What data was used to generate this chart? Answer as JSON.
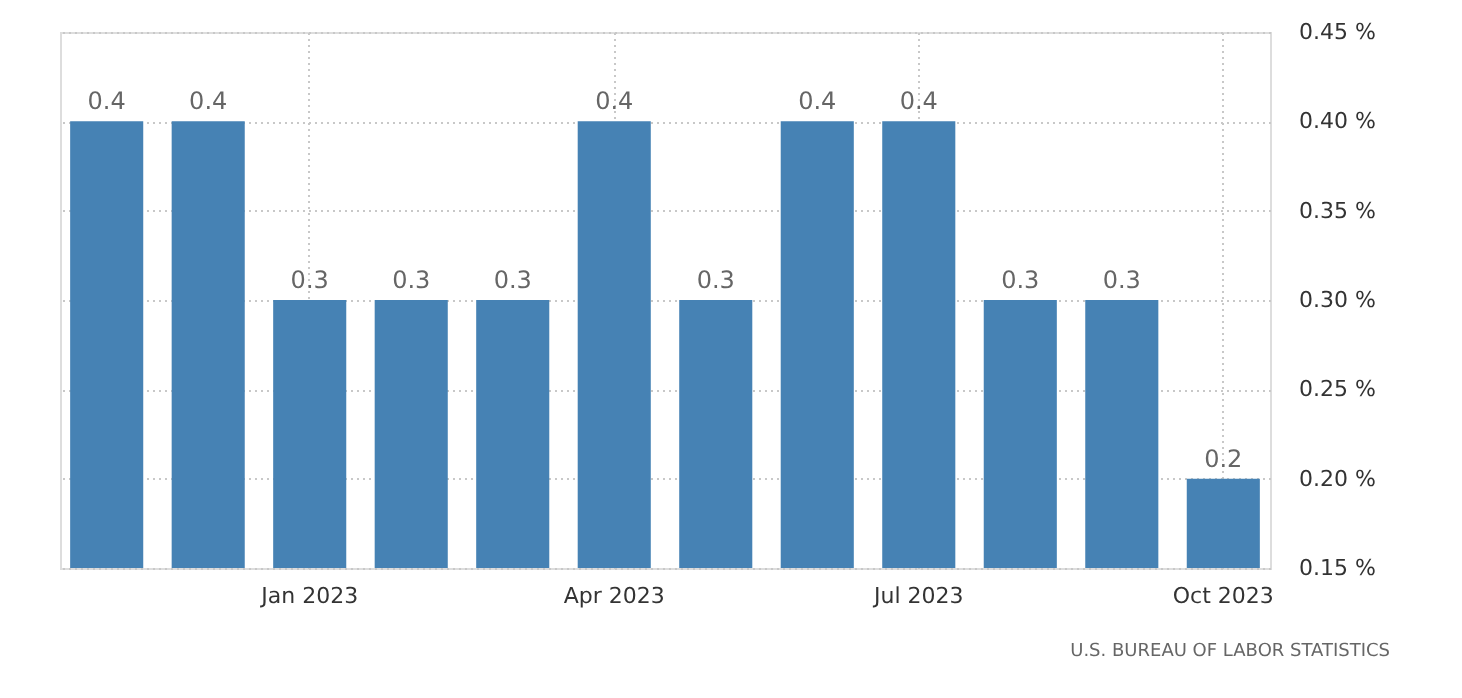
{
  "chart_data": {
    "type": "bar",
    "categories": [
      null,
      null,
      "Jan 2023",
      null,
      null,
      "Apr 2023",
      null,
      null,
      "Jul 2023",
      null,
      null,
      "Oct 2023"
    ],
    "values": [
      0.4,
      0.4,
      0.3,
      0.3,
      0.3,
      0.4,
      0.3,
      0.4,
      0.4,
      0.3,
      0.3,
      0.2
    ],
    "color": "#4682b4",
    "ylim": [
      0.15,
      0.45
    ],
    "yticks": [
      {
        "value": 0.15,
        "label": "0.15 %"
      },
      {
        "value": 0.2,
        "label": "0.20 %"
      },
      {
        "value": 0.25,
        "label": "0.25 %"
      },
      {
        "value": 0.3,
        "label": "0.30 %"
      },
      {
        "value": 0.35,
        "label": "0.35 %"
      },
      {
        "value": 0.4,
        "label": "0.40 %"
      },
      {
        "value": 0.45,
        "label": "0.45 %"
      }
    ],
    "data_labels": true,
    "grid": true,
    "annotations": [
      "U.S. BUREAU OF LABOR STATISTICS"
    ]
  }
}
